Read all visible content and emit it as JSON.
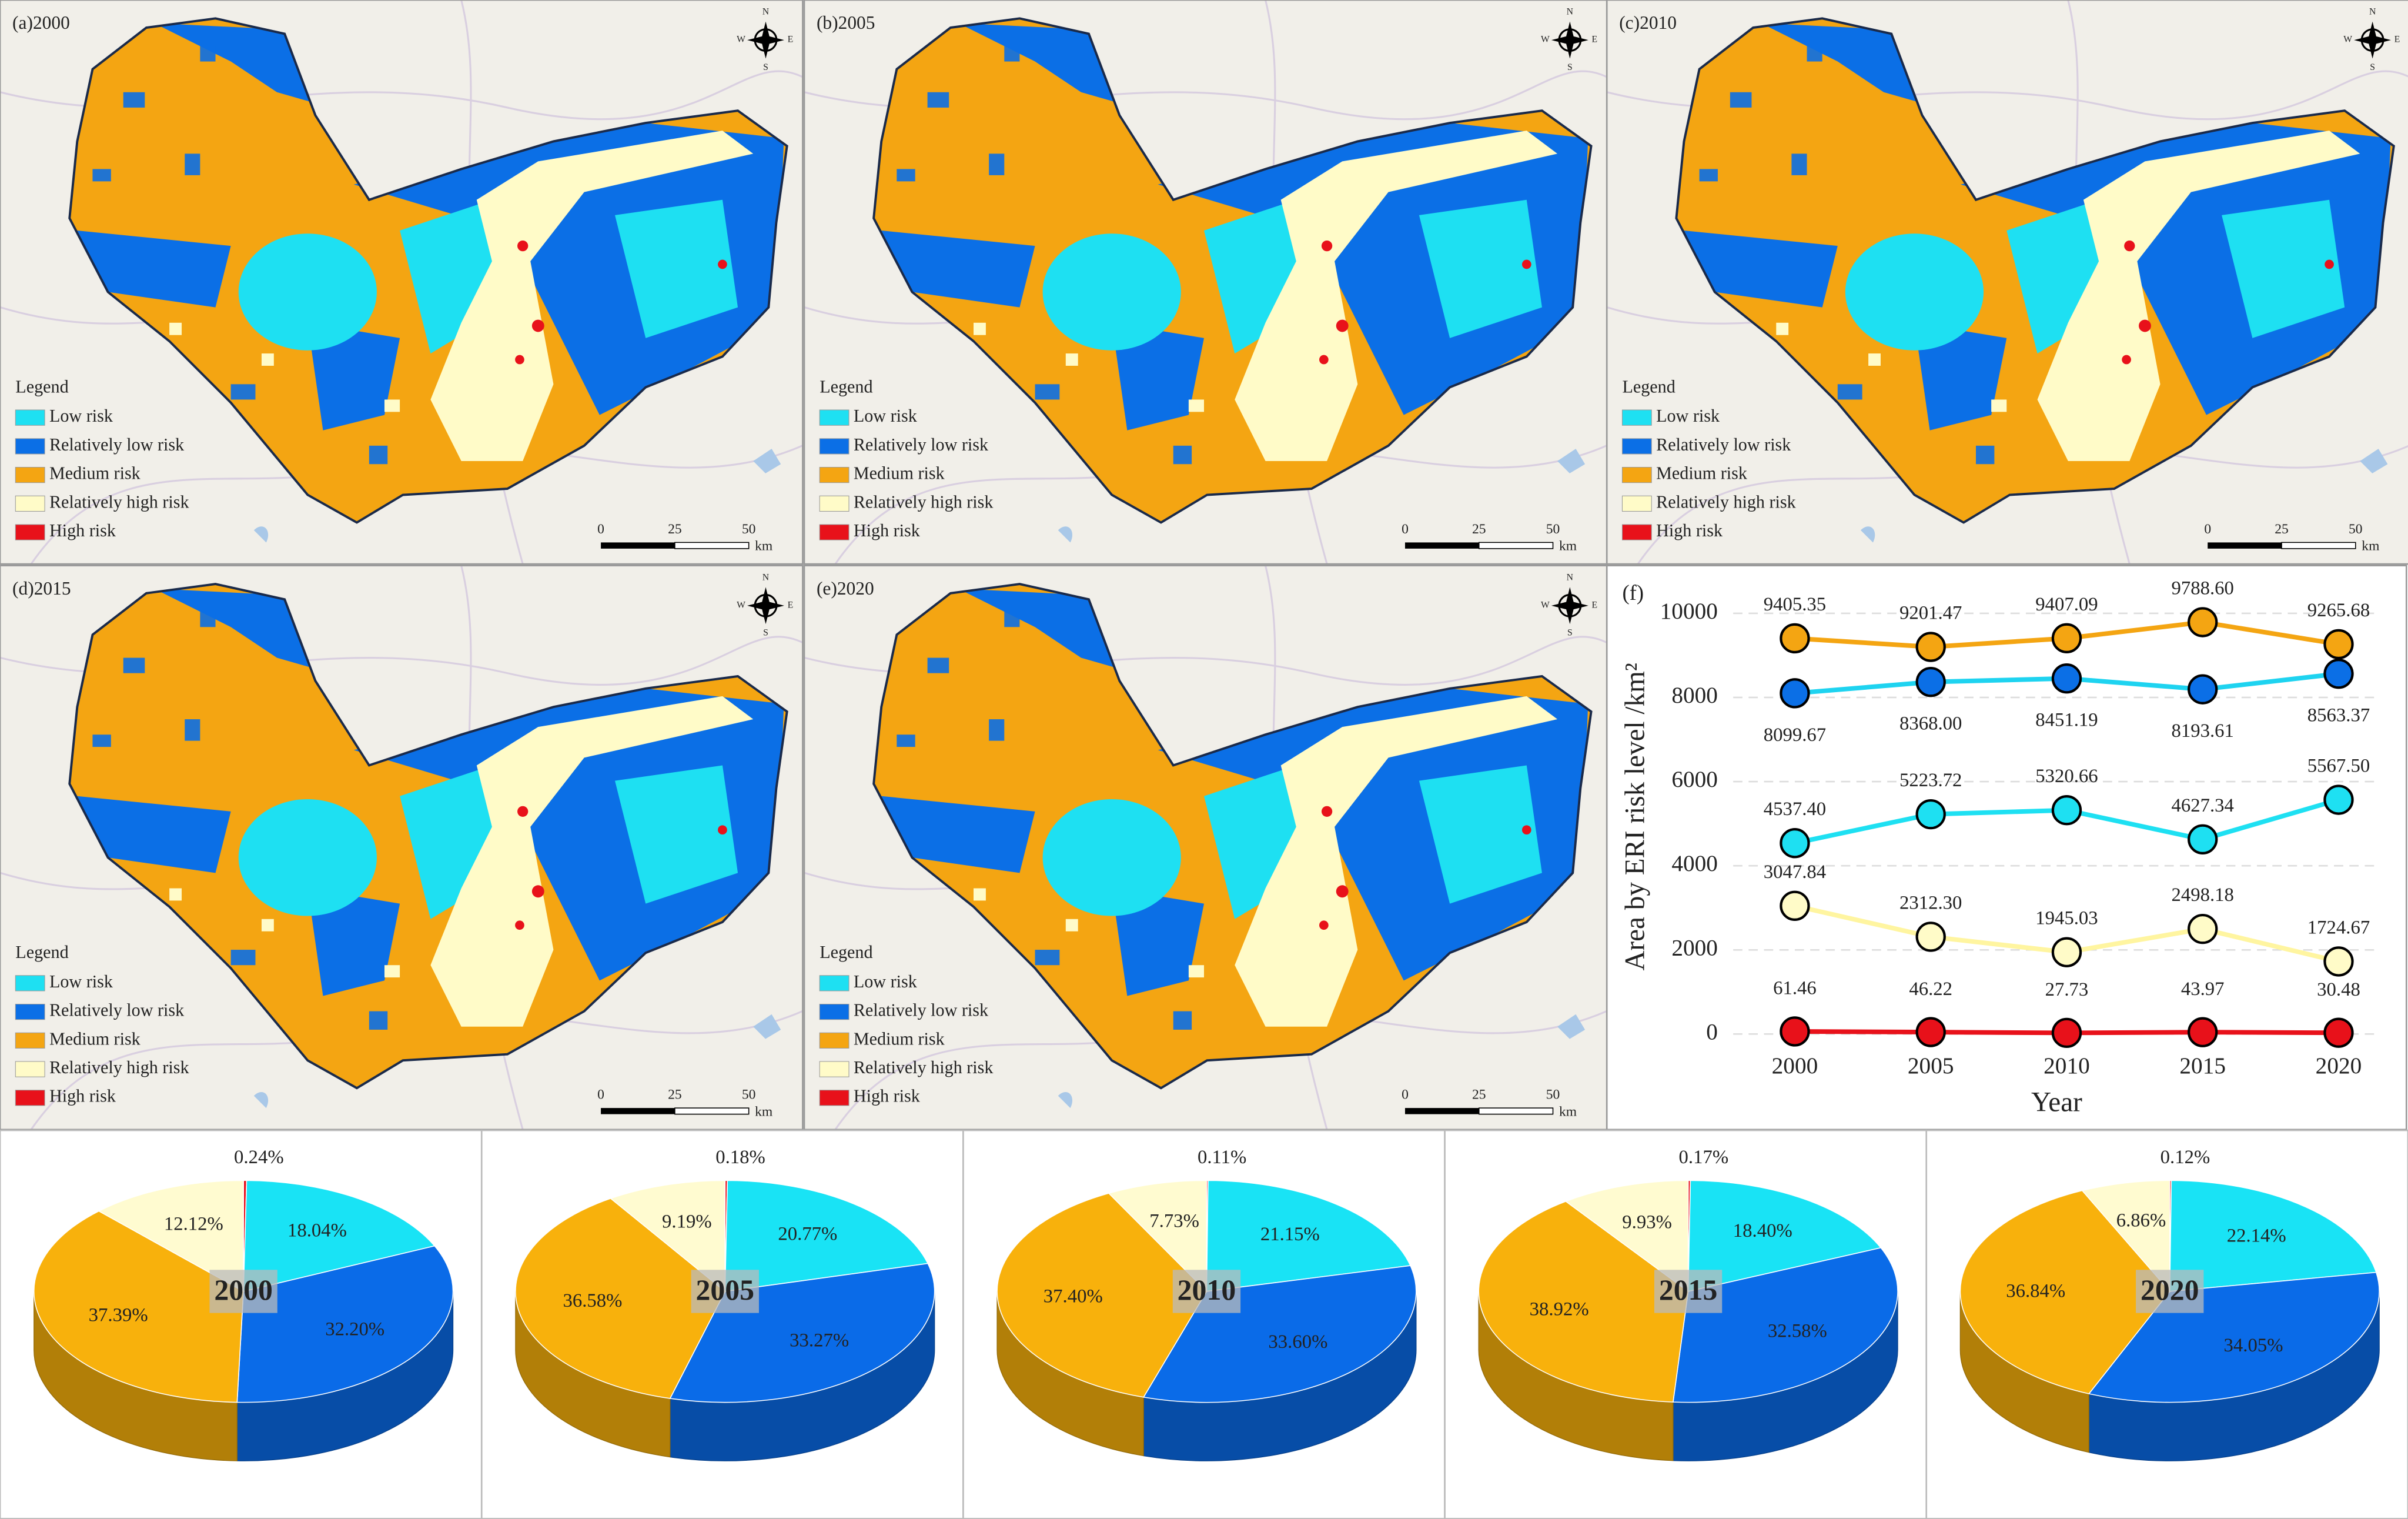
{
  "maps": [
    {
      "label": "(a)2000",
      "legend_title": "Legend",
      "legend": [
        {
          "label": "Low risk",
          "color": "#1ee0f2"
        },
        {
          "label": "Relatively low risk",
          "color": "#0b6fe6"
        },
        {
          "label": "Medium risk",
          "color": "#f4a512"
        },
        {
          "label": "Relatively high risk",
          "color": "#fffbc8"
        },
        {
          "label": "High risk",
          "color": "#e8111a"
        }
      ],
      "scale": [
        "0",
        "25",
        "50"
      ],
      "unit": "km",
      "compass": [
        "N",
        "S",
        "W",
        "E"
      ]
    },
    {
      "label": "(b)2005",
      "legend_title": "Legend",
      "legend": [
        {
          "label": "Low risk",
          "color": "#1ee0f2"
        },
        {
          "label": "Relatively low risk",
          "color": "#0b6fe6"
        },
        {
          "label": "Medium risk",
          "color": "#f4a512"
        },
        {
          "label": "Relatively high risk",
          "color": "#fffbc8"
        },
        {
          "label": "High risk",
          "color": "#e8111a"
        }
      ],
      "scale": [
        "0",
        "25",
        "50"
      ],
      "unit": "km",
      "compass": [
        "N",
        "S",
        "W",
        "E"
      ]
    },
    {
      "label": "(c)2010",
      "legend_title": "Legend",
      "legend": [
        {
          "label": "Low risk",
          "color": "#1ee0f2"
        },
        {
          "label": "Relatively low risk",
          "color": "#0b6fe6"
        },
        {
          "label": "Medium risk",
          "color": "#f4a512"
        },
        {
          "label": "Relatively high risk",
          "color": "#fffbc8"
        },
        {
          "label": "High risk",
          "color": "#e8111a"
        }
      ],
      "scale": [
        "0",
        "25",
        "50"
      ],
      "unit": "km",
      "compass": [
        "N",
        "S",
        "W",
        "E"
      ]
    },
    {
      "label": "(d)2015",
      "legend_title": "Legend",
      "legend": [
        {
          "label": "Low risk",
          "color": "#1ee0f2"
        },
        {
          "label": "Relatively low risk",
          "color": "#0b6fe6"
        },
        {
          "label": "Medium risk",
          "color": "#f4a512"
        },
        {
          "label": "Relatively high risk",
          "color": "#fffbc8"
        },
        {
          "label": "High risk",
          "color": "#e8111a"
        }
      ],
      "scale": [
        "0",
        "25",
        "50"
      ],
      "unit": "km",
      "compass": [
        "N",
        "S",
        "W",
        "E"
      ]
    },
    {
      "label": "(e)2020",
      "legend_title": "Legend",
      "legend": [
        {
          "label": "Low risk",
          "color": "#1ee0f2"
        },
        {
          "label": "Relatively low risk",
          "color": "#0b6fe6"
        },
        {
          "label": "Medium risk",
          "color": "#f4a512"
        },
        {
          "label": "Relatively high risk",
          "color": "#fffbc8"
        },
        {
          "label": "High risk",
          "color": "#e8111a"
        }
      ],
      "scale": [
        "0",
        "25",
        "50"
      ],
      "unit": "km",
      "compass": [
        "N",
        "S",
        "W",
        "E"
      ]
    }
  ],
  "chart_data": [
    {
      "type": "line",
      "title": "(f)",
      "x_label": "Year",
      "y_label": "Area by ERI risk level /km²",
      "categories": [
        "2000",
        "2005",
        "2010",
        "2015",
        "2020"
      ],
      "ylim": [
        -300,
        10600
      ],
      "yticks": [
        0,
        2000,
        4000,
        6000,
        8000,
        10000
      ],
      "grid": true,
      "series": [
        {
          "color": "#f4a512",
          "label_position": "above",
          "values": [
            9405.35,
            9201.47,
            9407.09,
            9788.6,
            9265.68
          ],
          "value_labels": [
            "9405.35",
            "9201.47",
            "9407.09",
            "9788.60",
            "9265.68"
          ]
        },
        {
          "color": "#0b6fe6",
          "line_color": "#1ed3f0",
          "label_position": "below",
          "values": [
            8099.67,
            8368,
            8451.19,
            8193.61,
            8563.37
          ],
          "value_labels": [
            "8099.67",
            "8368.00",
            "8451.19",
            "8193.61",
            "8563.37"
          ]
        },
        {
          "color": "#1ee0f2",
          "label_position": "above",
          "values": [
            4537.4,
            5223.72,
            5320.66,
            4627.34,
            5567.5
          ],
          "value_labels": [
            "4537.40",
            "5223.72",
            "5320.66",
            "4627.34",
            "5567.50"
          ]
        },
        {
          "color": "#fffbc8",
          "line_color": "#fff5a0",
          "label_position": "above",
          "values": [
            3047.84,
            2312.3,
            1945.03,
            2498.18,
            1724.67
          ],
          "value_labels": [
            "3047.84",
            "2312.30",
            "1945.03",
            "2498.18",
            "1724.67"
          ]
        },
        {
          "color": "#e8111a",
          "label_position": "above",
          "values": [
            61.46,
            46.22,
            27.73,
            43.97,
            30.48
          ],
          "value_labels": [
            "61.46",
            "46.22",
            "27.73",
            "43.97",
            "30.48"
          ]
        }
      ]
    },
    {
      "type": "pie",
      "title": "2000",
      "colors": [
        "#e8111a",
        "#19e3f5",
        "#0a6be8",
        "#f8b10c",
        "#fffbd0"
      ],
      "values": [
        0.24,
        18.04,
        32.2,
        37.39,
        12.12
      ],
      "value_labels": [
        "0.24%",
        "18.04%",
        "32.20%",
        "37.39%",
        "12.12%"
      ]
    },
    {
      "type": "pie",
      "title": "2005",
      "colors": [
        "#e8111a",
        "#19e3f5",
        "#0a6be8",
        "#f8b10c",
        "#fffbd0"
      ],
      "values": [
        0.18,
        20.77,
        33.27,
        36.58,
        9.19
      ],
      "value_labels": [
        "0.18%",
        "20.77%",
        "33.27%",
        "36.58%",
        "9.19%"
      ]
    },
    {
      "type": "pie",
      "title": "2010",
      "colors": [
        "#e8111a",
        "#19e3f5",
        "#0a6be8",
        "#f8b10c",
        "#fffbd0"
      ],
      "values": [
        0.11,
        21.15,
        33.6,
        37.4,
        7.73
      ],
      "value_labels": [
        "0.11%",
        "21.15%",
        "33.60%",
        "37.40%",
        "7.73%"
      ]
    },
    {
      "type": "pie",
      "title": "2015",
      "colors": [
        "#e8111a",
        "#19e3f5",
        "#0a6be8",
        "#f8b10c",
        "#fffbd0"
      ],
      "values": [
        0.17,
        18.4,
        32.58,
        38.92,
        9.93
      ],
      "value_labels": [
        "0.17%",
        "18.40%",
        "32.58%",
        "38.92%",
        "9.93%"
      ]
    },
    {
      "type": "pie",
      "title": "2020",
      "colors": [
        "#e8111a",
        "#19e3f5",
        "#0a6be8",
        "#f8b10c",
        "#fffbd0"
      ],
      "values": [
        0.12,
        22.14,
        34.05,
        36.84,
        6.86
      ],
      "value_labels": [
        "0.12%",
        "22.14%",
        "34.05%",
        "36.84%",
        "6.86%"
      ]
    }
  ]
}
